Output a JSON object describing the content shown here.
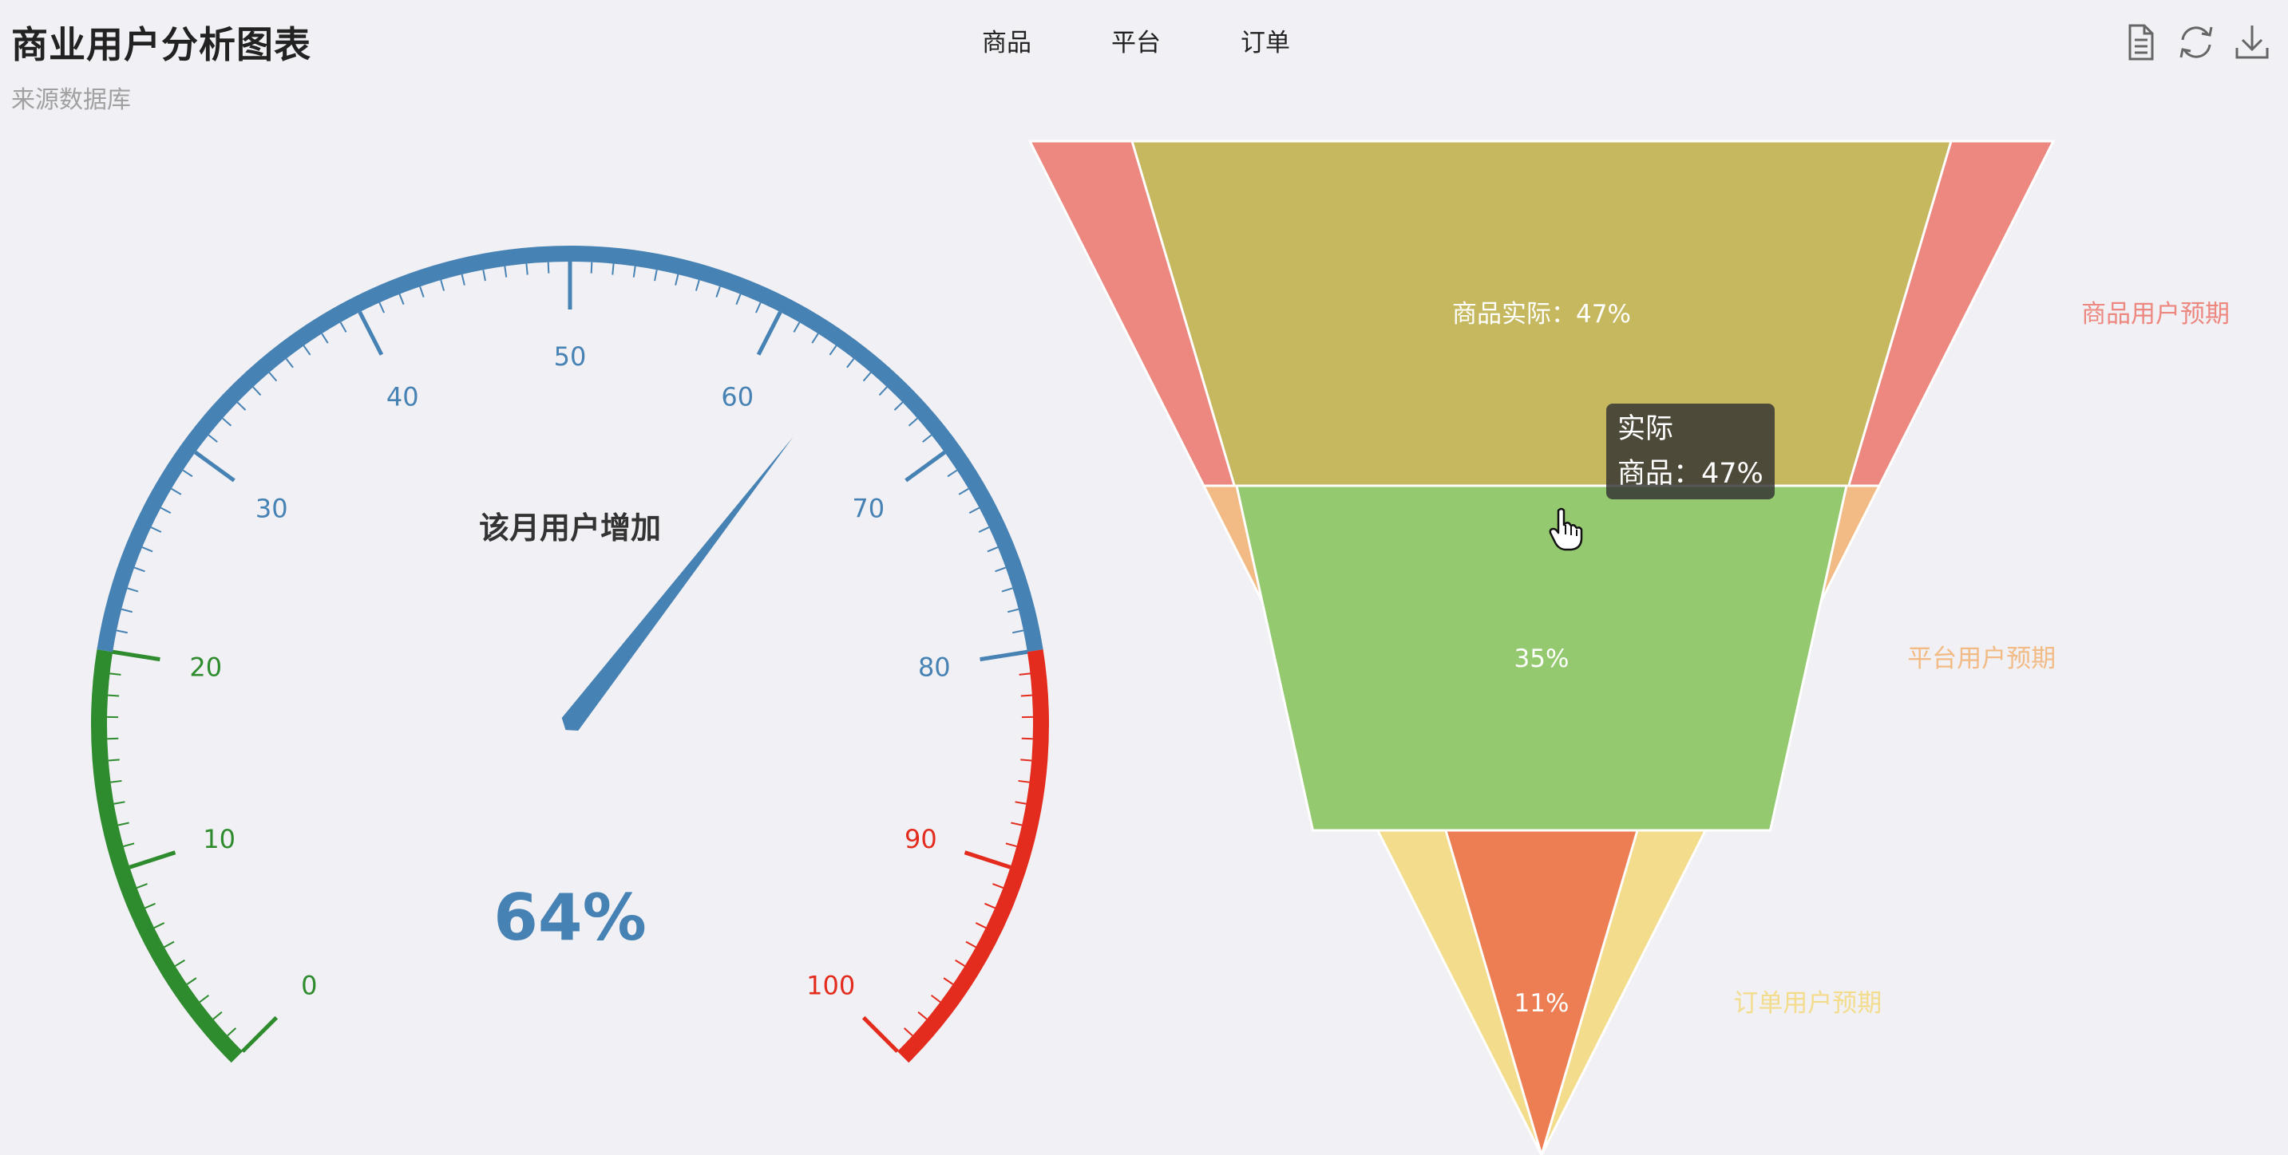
{
  "header": {
    "title": "商业用户分析图表",
    "subtitle": "来源数据库"
  },
  "legend": {
    "items": [
      "商品",
      "平台",
      "订单"
    ]
  },
  "toolbox": {
    "icons": [
      "data-view-icon",
      "refresh-icon",
      "download-icon"
    ]
  },
  "tooltip": {
    "series": "实际",
    "line": "商品：47%"
  },
  "colors": {
    "gauge_green": "#2e8b2e",
    "gauge_blue": "#4682b4",
    "gauge_red": "#e32c1e",
    "expected_1": "#ed8880",
    "expected_2": "#f2bb85",
    "expected_3": "#f3dc8c",
    "actual_1": "#c5b85f",
    "actual_2": "#94c96f",
    "actual_3": "#ed7e53",
    "background": "#f1f0f4"
  },
  "chart_data": [
    {
      "type": "gauge",
      "title": "该月用户增加",
      "value": 64,
      "display_value": "64%",
      "min": 0,
      "max": 100,
      "major_tick_labels": [
        "0",
        "10",
        "20",
        "30",
        "40",
        "50",
        "60",
        "70",
        "80",
        "90",
        "100"
      ],
      "color_bands": [
        {
          "from": 0,
          "to": 20,
          "color": "#2e8b2e"
        },
        {
          "from": 20,
          "to": 80,
          "color": "#4682b4"
        },
        {
          "from": 80,
          "to": 100,
          "color": "#e32c1e"
        }
      ]
    },
    {
      "type": "funnel",
      "categories": [
        "商品",
        "平台",
        "订单"
      ],
      "series": [
        {
          "name": "预期",
          "labels": [
            "商品用户预期",
            "平台用户预期",
            "订单用户预期"
          ],
          "colors": [
            "#ed8880",
            "#f2bb85",
            "#f3dc8c"
          ]
        },
        {
          "name": "实际",
          "values": [
            47,
            35,
            11
          ],
          "labels": [
            "商品实际：47%",
            "35%",
            "11%"
          ],
          "colors": [
            "#c5b85f",
            "#94c96f",
            "#ed7e53"
          ]
        }
      ]
    }
  ]
}
